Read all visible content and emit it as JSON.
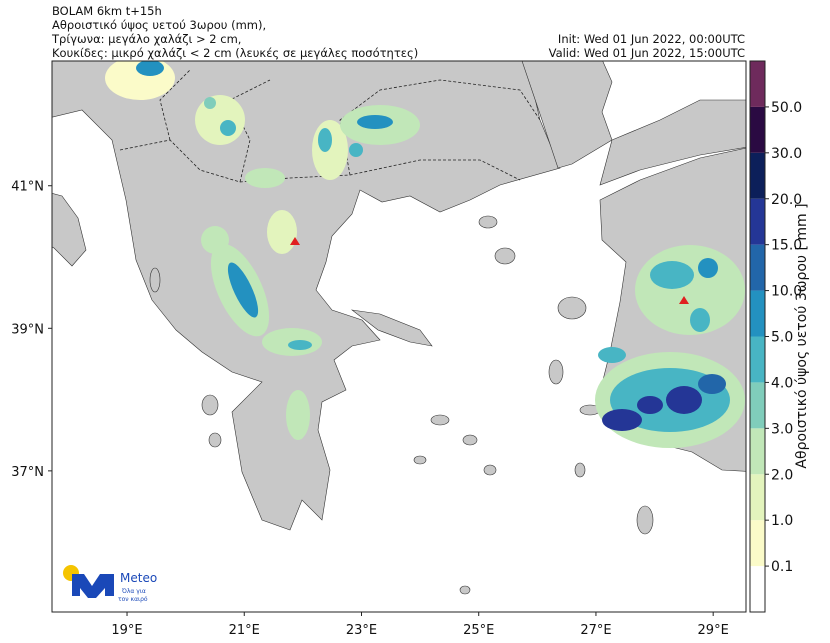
{
  "header": {
    "lines": [
      "BOLAM 6km t+15h",
      "Αθροιστικό ύψος υετού 3ωρου (mm),",
      "Τρίγωνα: μεγάλο χαλάζι > 2 cm,",
      "Κουκίδες: μικρό χαλάζι < 2 cm (λευκές σε μεγάλες ποσότητες)"
    ],
    "init": "Init: Wed 01 Jun 2022, 00:00UTC",
    "valid": "Valid: Wed 01 Jun 2022, 15:00UTC"
  },
  "map": {
    "lon_range": [
      17.72,
      29.56
    ],
    "lat_range": [
      35.02,
      42.75
    ],
    "lon_ticks": [
      {
        "value": 19,
        "label": "19°E"
      },
      {
        "value": 21,
        "label": "21°E"
      },
      {
        "value": 23,
        "label": "23°E"
      },
      {
        "value": 25,
        "label": "25°E"
      },
      {
        "value": 27,
        "label": "27°E"
      },
      {
        "value": 29,
        "label": "29°E"
      }
    ],
    "lat_ticks": [
      {
        "value": 41,
        "label": "41°N"
      },
      {
        "value": 39,
        "label": "39°N"
      },
      {
        "value": 37,
        "label": "37°N"
      }
    ]
  },
  "colorbar": {
    "label": "Αθροιστικό ύψος υετού 3ωρου [ mm ]",
    "ticks": [
      0.1,
      {
        "value": 1,
        "label": "1.0"
      },
      {
        "value": 2,
        "label": "2.0"
      },
      {
        "value": 3,
        "label": "3.0"
      },
      {
        "value": 4,
        "label": "4.0"
      },
      {
        "value": 5,
        "label": "5.0"
      },
      {
        "value": 10,
        "label": "10.0"
      },
      {
        "value": 15,
        "label": "15.0"
      },
      {
        "value": 20,
        "label": "20.0"
      },
      {
        "value": 30,
        "label": "30.0"
      },
      {
        "value": 50,
        "label": "50.0"
      }
    ],
    "colors": [
      "#ffffff",
      "#fbfbc9",
      "#e3f4bd",
      "#c1e7b8",
      "#80cdbb",
      "#48b5c4",
      "#2391c0",
      "#2266a9",
      "#243696",
      "#0c1f5a",
      "#2a0a42",
      "#6e2a5c"
    ]
  },
  "logo": {
    "name": "Meteo",
    "tagline": [
      "Όλα για",
      "τον καιρό"
    ]
  }
}
